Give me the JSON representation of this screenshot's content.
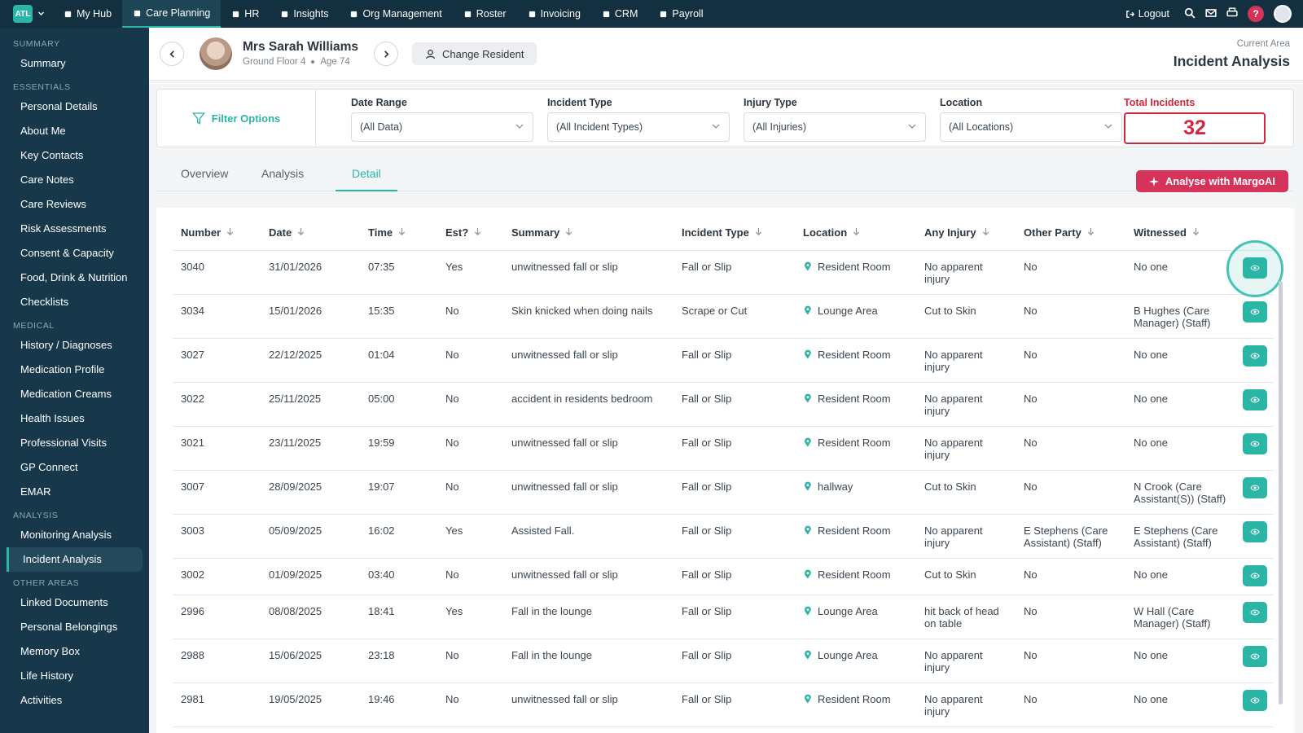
{
  "topnav": {
    "logo": "ATL",
    "items": [
      "My Hub",
      "Care Planning",
      "HR",
      "Insights",
      "Org Management",
      "Roster",
      "Invoicing",
      "CRM",
      "Payroll"
    ],
    "active": 1,
    "logout": "Logout",
    "help": "?"
  },
  "sidebar": {
    "sections": [
      {
        "title": "SUMMARY",
        "items": [
          "Summary"
        ]
      },
      {
        "title": "ESSENTIALS",
        "items": [
          "Personal Details",
          "About Me",
          "Key Contacts",
          "Care Notes",
          "Care Reviews",
          "Risk Assessments",
          "Consent & Capacity",
          "Food, Drink & Nutrition",
          "Checklists"
        ]
      },
      {
        "title": "MEDICAL",
        "items": [
          "History / Diagnoses",
          "Medication Profile",
          "Medication Creams",
          "Health Issues",
          "Professional Visits",
          "GP Connect",
          "EMAR"
        ]
      },
      {
        "title": "ANALYSIS",
        "items": [
          "Monitoring Analysis",
          "Incident Analysis"
        ]
      },
      {
        "title": "OTHER AREAS",
        "items": [
          "Linked Documents",
          "Personal Belongings",
          "Memory Box",
          "Life History",
          "Activities"
        ]
      }
    ],
    "active_section": 3,
    "active_item": 1
  },
  "header": {
    "name": "Mrs Sarah Williams",
    "floor": "Ground Floor 4",
    "age": "Age 74",
    "change_resident": "Change Resident",
    "area_label": "Current Area",
    "area": "Incident Analysis"
  },
  "filters": {
    "title": "Filter Options",
    "fields": [
      {
        "label": "Date Range",
        "value": "(All Data)"
      },
      {
        "label": "Incident Type",
        "value": "(All Incident Types)"
      },
      {
        "label": "Injury Type",
        "value": "(All Injuries)"
      },
      {
        "label": "Location",
        "value": "(All Locations)"
      }
    ],
    "total_label": "Total Incidents",
    "total": 32
  },
  "tabs": {
    "items": [
      "Overview",
      "Analysis",
      "Detail"
    ],
    "active": 2
  },
  "ai_button": "Analyse with MargoAI",
  "table": {
    "columns": [
      "Number",
      "Date",
      "Time",
      "Est?",
      "Summary",
      "Incident Type",
      "Location",
      "Any Injury",
      "Other Party",
      "Witnessed"
    ],
    "rows": [
      [
        "3040",
        "31/01/2026",
        "07:35",
        "Yes",
        "unwitnessed fall or slip",
        "Fall or Slip",
        "Resident Room",
        "No apparent injury",
        "No",
        "No one"
      ],
      [
        "3034",
        "15/01/2026",
        "15:35",
        "No",
        "Skin knicked when doing nails",
        "Scrape or Cut",
        "Lounge Area",
        "Cut to Skin",
        "No",
        "B Hughes (Care Manager) (Staff)"
      ],
      [
        "3027",
        "22/12/2025",
        "01:04",
        "No",
        "unwitnessed fall or slip",
        "Fall or Slip",
        "Resident Room",
        "No apparent injury",
        "No",
        "No one"
      ],
      [
        "3022",
        "25/11/2025",
        "05:00",
        "No",
        "accident in residents bedroom",
        "Fall or Slip",
        "Resident Room",
        "No apparent injury",
        "No",
        "No one"
      ],
      [
        "3021",
        "23/11/2025",
        "19:59",
        "No",
        "unwitnessed fall or slip",
        "Fall or Slip",
        "Resident Room",
        "No apparent injury",
        "No",
        "No one"
      ],
      [
        "3007",
        "28/09/2025",
        "19:07",
        "No",
        "unwitnessed fall or slip",
        "Fall or Slip",
        "hallway",
        "Cut to Skin",
        "No",
        "N Crook (Care Assistant(S)) (Staff)"
      ],
      [
        "3003",
        "05/09/2025",
        "16:02",
        "Yes",
        "Assisted Fall.",
        "Fall or Slip",
        "Resident Room",
        "No apparent injury",
        "E Stephens (Care Assistant) (Staff)",
        "E Stephens (Care Assistant) (Staff)"
      ],
      [
        "3002",
        "01/09/2025",
        "03:40",
        "No",
        "unwitnessed fall or slip",
        "Fall or Slip",
        "Resident Room",
        "Cut to Skin",
        "No",
        "No one"
      ],
      [
        "2996",
        "08/08/2025",
        "18:41",
        "Yes",
        "Fall in the lounge",
        "Fall or Slip",
        "Lounge Area",
        "hit back of head on table",
        "No",
        "W Hall (Care Manager) (Staff)"
      ],
      [
        "2988",
        "15/06/2025",
        "23:18",
        "No",
        "Fall in the lounge",
        "Fall or Slip",
        "Lounge Area",
        "No apparent injury",
        "No",
        "No one"
      ],
      [
        "2981",
        "19/05/2025",
        "19:46",
        "No",
        "unwitnessed fall or slip",
        "Fall or Slip",
        "Resident Room",
        "No apparent injury",
        "No",
        "No one"
      ]
    ]
  }
}
